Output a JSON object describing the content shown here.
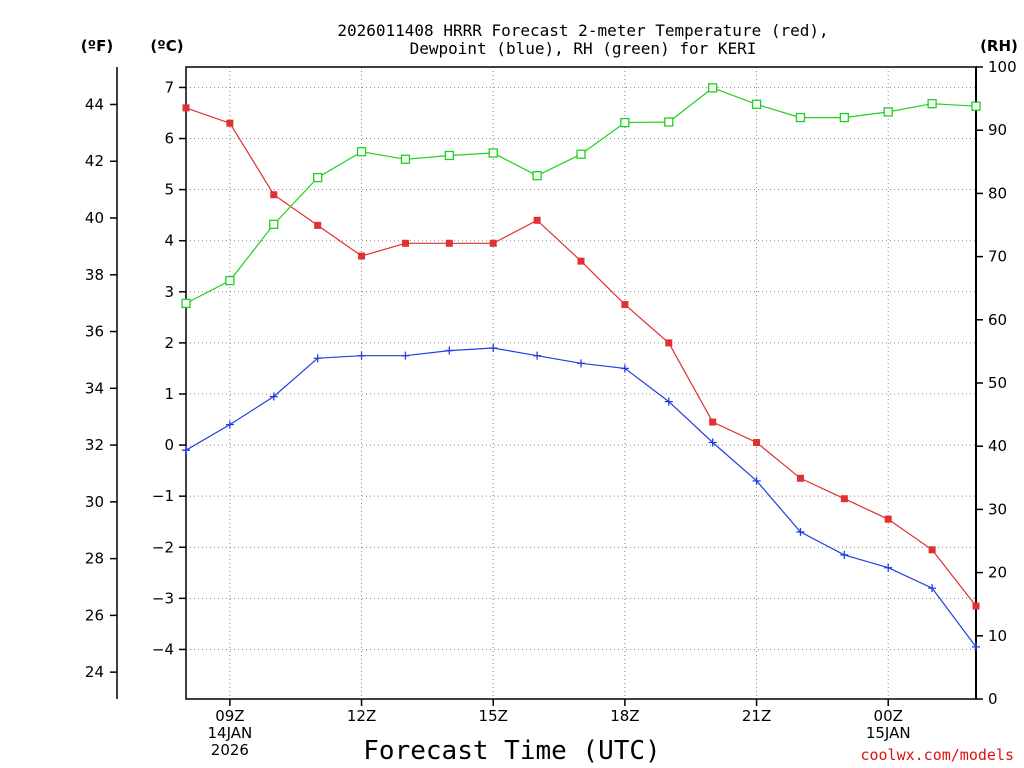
{
  "chart_data": {
    "type": "line",
    "title": [
      "2026011408 HRRR Forecast 2-meter Temperature (red),",
      "Dewpoint (blue), RH (green) for KERI"
    ],
    "xlabel": "Forecast Time (UTC)",
    "credit": "coolwx.com/models",
    "unit_labels": {
      "fahrenheit": "(ºF)",
      "celsius": "(ºC)",
      "rh": "(RH)"
    },
    "x_hours": [
      8,
      9,
      10,
      11,
      12,
      13,
      14,
      15,
      16,
      17,
      18,
      19,
      20,
      21,
      22,
      23,
      24,
      25,
      26
    ],
    "xlim": [
      8,
      26
    ],
    "x_ticks": [
      {
        "hour": 9,
        "lines": [
          "09Z",
          "14JAN",
          "2026"
        ]
      },
      {
        "hour": 12,
        "lines": [
          "12Z"
        ]
      },
      {
        "hour": 15,
        "lines": [
          "15Z"
        ]
      },
      {
        "hour": 18,
        "lines": [
          "18Z"
        ]
      },
      {
        "hour": 21,
        "lines": [
          "21Z"
        ]
      },
      {
        "hour": 24,
        "lines": [
          "00Z",
          "15JAN"
        ]
      }
    ],
    "left_axis_c": {
      "range": [
        -4.97,
        7.4
      ],
      "ticks": [
        -4,
        -3,
        -2,
        -1,
        0,
        1,
        2,
        3,
        4,
        5,
        6,
        7
      ]
    },
    "left_axis_f": {
      "ticks": [
        24,
        26,
        28,
        30,
        32,
        34,
        36,
        38,
        40,
        42,
        44
      ]
    },
    "right_axis_rh": {
      "range": [
        0,
        100
      ],
      "ticks": [
        0,
        10,
        20,
        30,
        40,
        50,
        60,
        70,
        80,
        90,
        100
      ]
    },
    "series": [
      {
        "name": "Temperature",
        "unit": "C",
        "color": "#e03030",
        "marker": "filled-square",
        "values": [
          6.6,
          6.3,
          4.9,
          4.3,
          3.7,
          3.95,
          3.95,
          3.95,
          4.4,
          3.6,
          2.75,
          2.0,
          0.45,
          0.05,
          -0.65,
          -1.05,
          -1.45,
          -2.05,
          -3.15
        ]
      },
      {
        "name": "Dewpoint",
        "unit": "C",
        "color": "#2040e0",
        "marker": "plus",
        "values": [
          -0.1,
          0.4,
          0.95,
          1.7,
          1.75,
          1.75,
          1.85,
          1.9,
          1.75,
          1.6,
          1.5,
          0.85,
          0.05,
          -0.7,
          -1.7,
          -2.15,
          -2.4,
          -2.8,
          -3.95
        ]
      },
      {
        "name": "RH",
        "unit": "%",
        "color": "#20d020",
        "marker": "open-square",
        "values": [
          62.6,
          66.2,
          75.1,
          82.5,
          86.6,
          85.4,
          86.0,
          86.4,
          82.8,
          86.2,
          91.2,
          91.3,
          96.7,
          94.1,
          92.0,
          92.0,
          92.9,
          94.2,
          93.8
        ]
      }
    ],
    "grid": true
  }
}
